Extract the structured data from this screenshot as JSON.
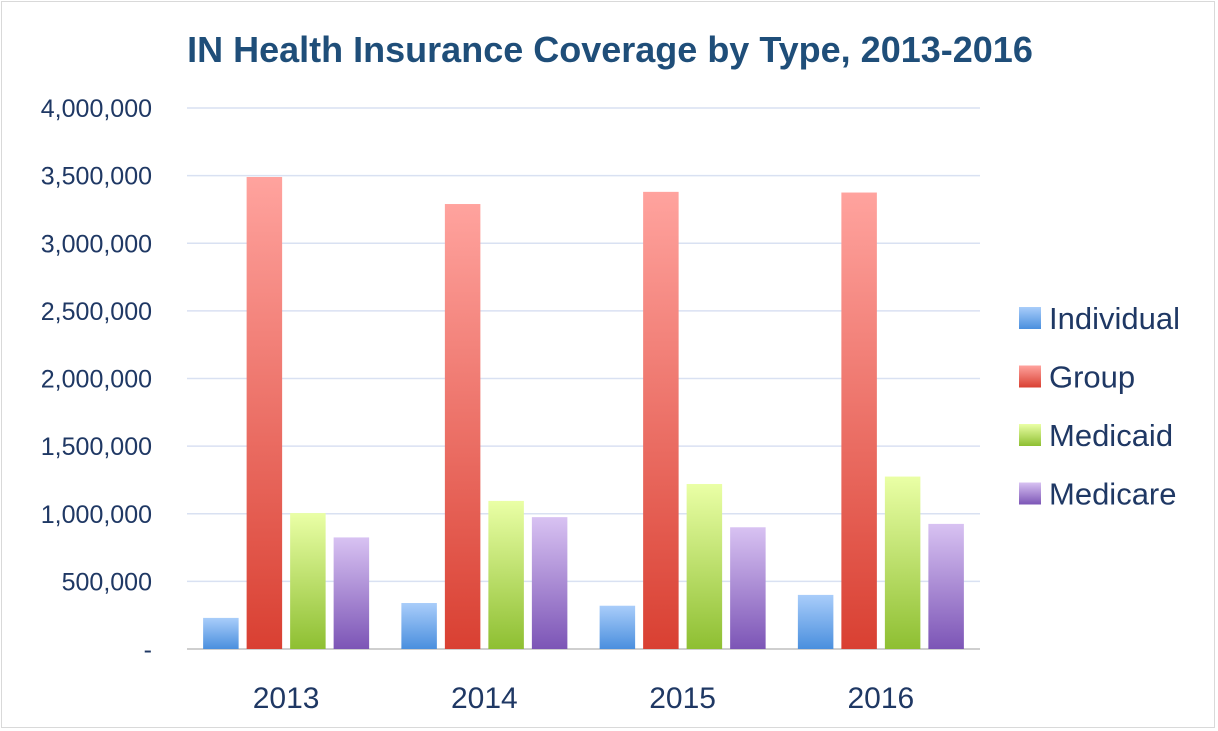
{
  "chart_data": {
    "type": "bar",
    "title": "IN Health Insurance Coverage by Type, 2013-2016",
    "xlabel": "",
    "ylabel": "",
    "categories": [
      "2013",
      "2014",
      "2015",
      "2016"
    ],
    "series": [
      {
        "name": "Individual",
        "values": [
          230000,
          340000,
          320000,
          400000
        ]
      },
      {
        "name": "Group",
        "values": [
          3490000,
          3290000,
          3380000,
          3375000
        ]
      },
      {
        "name": "Medicaid",
        "values": [
          1005000,
          1095000,
          1220000,
          1275000
        ]
      },
      {
        "name": "Medicare",
        "values": [
          825000,
          975000,
          900000,
          925000
        ]
      }
    ],
    "ylim": [
      0,
      4000000
    ],
    "yticks": [
      0,
      500000,
      1000000,
      1500000,
      2000000,
      2500000,
      3000000,
      3500000,
      4000000
    ],
    "ytick_labels": [
      "-",
      "500,000",
      "1,000,000",
      "1,500,000",
      "2,000,000",
      "2,500,000",
      "3,000,000",
      "3,500,000",
      "4,000,000"
    ],
    "grid": true,
    "legend_position": "right"
  },
  "colors": {
    "Individual": {
      "top": "#a9cdfa",
      "bottom": "#4a8fde"
    },
    "Group": {
      "top": "#ffa39e",
      "bottom": "#d94032"
    },
    "Medicaid": {
      "top": "#eaffa6",
      "bottom": "#8ebf32"
    },
    "Medicare": {
      "top": "#d8c2f2",
      "bottom": "#7c55b6"
    },
    "title": "#1f4e79",
    "axis_text": "#1f3864",
    "gridline": "#d9e1f2"
  }
}
